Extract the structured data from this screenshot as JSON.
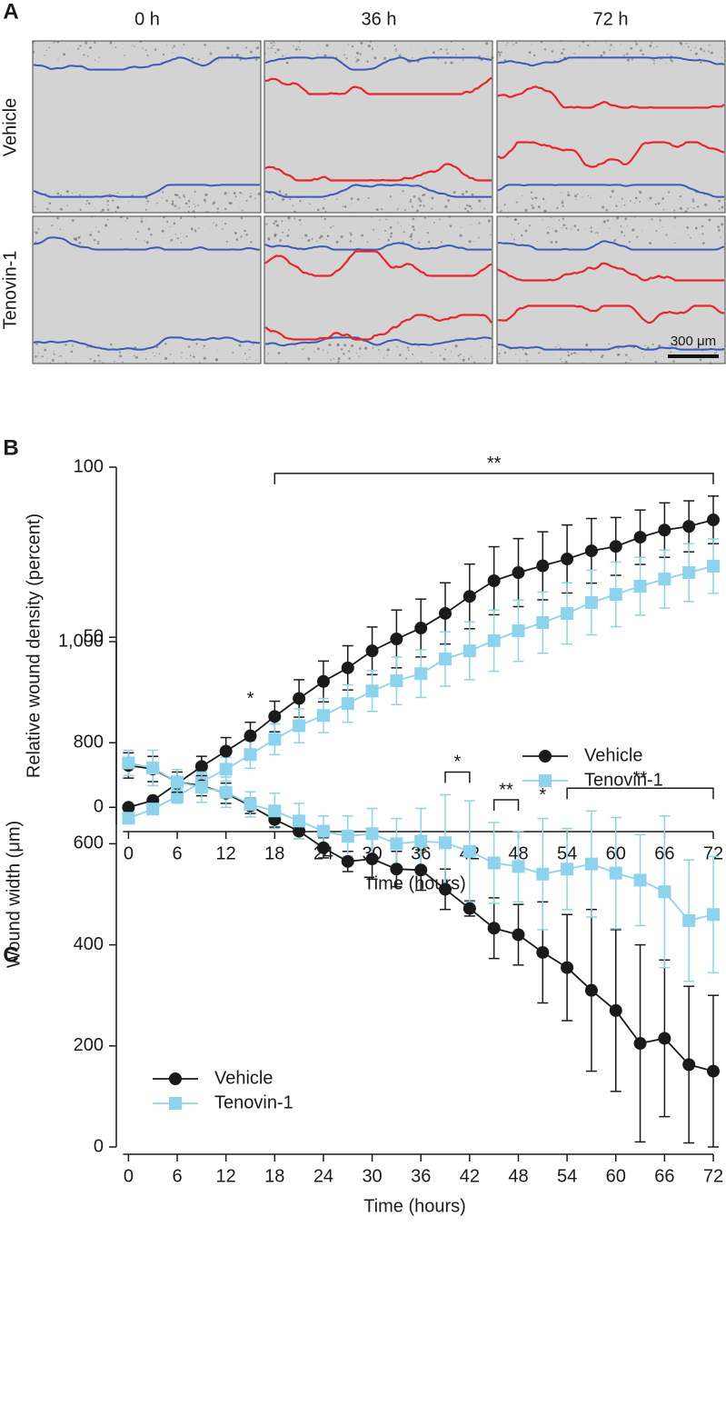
{
  "panel_a": {
    "panel": "A",
    "columns": [
      "0 h",
      "36 h",
      "72 h"
    ],
    "rows": [
      "Vehicle",
      "Tenovin-1"
    ],
    "scale_bar": "300 μm"
  },
  "chart_data": [
    {
      "type": "line",
      "panel": "B",
      "x_label": "Time (hours)",
      "y_label": "Relative wound density (percent)",
      "x": [
        0,
        3,
        6,
        9,
        12,
        15,
        18,
        21,
        24,
        27,
        30,
        33,
        36,
        39,
        42,
        45,
        48,
        51,
        54,
        57,
        60,
        63,
        66,
        69,
        72
      ],
      "xlim": [
        -1.5,
        72
      ],
      "xticks": [
        0,
        6,
        12,
        18,
        24,
        30,
        36,
        42,
        48,
        54,
        60,
        66,
        72
      ],
      "ylim": [
        -5,
        100
      ],
      "yticks": [
        0,
        50,
        100
      ],
      "legend": "lower right",
      "series": [
        {
          "name": "Vehicle",
          "color": "#1a1a1a",
          "marker": "circle",
          "values": [
            0,
            2,
            7,
            12,
            16.5,
            21,
            26.7,
            32,
            37,
            41,
            46,
            49.5,
            52.7,
            57,
            62,
            66.6,
            69,
            71,
            73,
            75.4,
            76.7,
            79.4,
            81.5,
            82.6,
            84.5
          ],
          "errors": [
            0,
            0.5,
            2,
            3,
            4,
            4,
            4.5,
            5.5,
            6,
            6.5,
            7,
            8.5,
            8.5,
            9,
            9.5,
            10,
            10,
            10,
            10,
            9.5,
            8.5,
            8,
            8,
            7.5,
            7
          ]
        },
        {
          "name": "Tenovin-1",
          "color": "#8dd3ee",
          "marker": "square",
          "values": [
            -3.2,
            -0.5,
            3.2,
            7.5,
            11.2,
            15.5,
            20,
            24,
            27,
            30.5,
            34.2,
            37.2,
            39.3,
            43.6,
            46,
            49,
            51.9,
            54.3,
            57,
            60.2,
            62.6,
            65,
            67.1,
            69,
            70.9
          ],
          "errors": [
            1,
            1.5,
            2,
            2.5,
            3.5,
            4,
            4.5,
            5,
            5,
            5.5,
            6,
            7,
            7,
            8,
            8.5,
            9,
            9,
            9,
            9,
            9.5,
            9.5,
            8.5,
            8.5,
            8.5,
            8
          ]
        }
      ],
      "annotations": [
        {
          "text": "*",
          "x": 15
        },
        {
          "text": "**",
          "x": [
            18,
            72
          ]
        }
      ]
    },
    {
      "type": "line",
      "panel": "C",
      "x_label": "Time (hours)",
      "y_label": "Wound width (μm)",
      "x": [
        0,
        3,
        6,
        9,
        12,
        15,
        18,
        21,
        24,
        27,
        30,
        33,
        36,
        39,
        42,
        45,
        48,
        51,
        54,
        57,
        60,
        63,
        66,
        69,
        72
      ],
      "xlim": [
        -1.5,
        72
      ],
      "xticks": [
        0,
        6,
        12,
        18,
        24,
        30,
        36,
        42,
        48,
        54,
        60,
        66,
        72
      ],
      "ylim": [
        0,
        1000
      ],
      "yticks": [
        0,
        200,
        400,
        600,
        800,
        {
          "value": 1000,
          "label": "1,000"
        }
      ],
      "legend": "lower left",
      "series": [
        {
          "name": "Vehicle",
          "color": "#1a1a1a",
          "marker": "circle",
          "values": [
            755,
            748,
            722,
            715,
            700,
            675,
            648,
            625,
            592,
            565,
            570,
            550,
            548,
            510,
            472,
            433,
            420,
            385,
            355,
            310,
            270,
            205,
            215,
            163,
            150
          ],
          "errors": [
            25,
            25,
            20,
            20,
            20,
            15,
            15,
            15,
            20,
            20,
            40,
            35,
            40,
            40,
            15,
            60,
            60,
            100,
            105,
            160,
            160,
            195,
            155,
            155,
            150
          ]
        },
        {
          "name": "Tenovin-1",
          "color": "#8dd3ee",
          "marker": "square",
          "values": [
            760,
            750,
            722,
            712,
            702,
            678,
            665,
            645,
            625,
            615,
            620,
            600,
            605,
            602,
            585,
            562,
            555,
            540,
            550,
            560,
            542,
            528,
            505,
            448,
            460
          ],
          "errors": [
            25,
            35,
            25,
            30,
            30,
            25,
            35,
            35,
            30,
            40,
            50,
            50,
            65,
            95,
            100,
            80,
            70,
            110,
            80,
            105,
            110,
            90,
            150,
            120,
            115
          ]
        }
      ],
      "annotations": [
        {
          "text": "*",
          "x": [
            39,
            42
          ]
        },
        {
          "text": "**",
          "x": [
            45,
            48
          ]
        },
        {
          "text": "*",
          "x": 51
        },
        {
          "text": "**",
          "x": [
            54,
            72
          ]
        }
      ]
    }
  ]
}
